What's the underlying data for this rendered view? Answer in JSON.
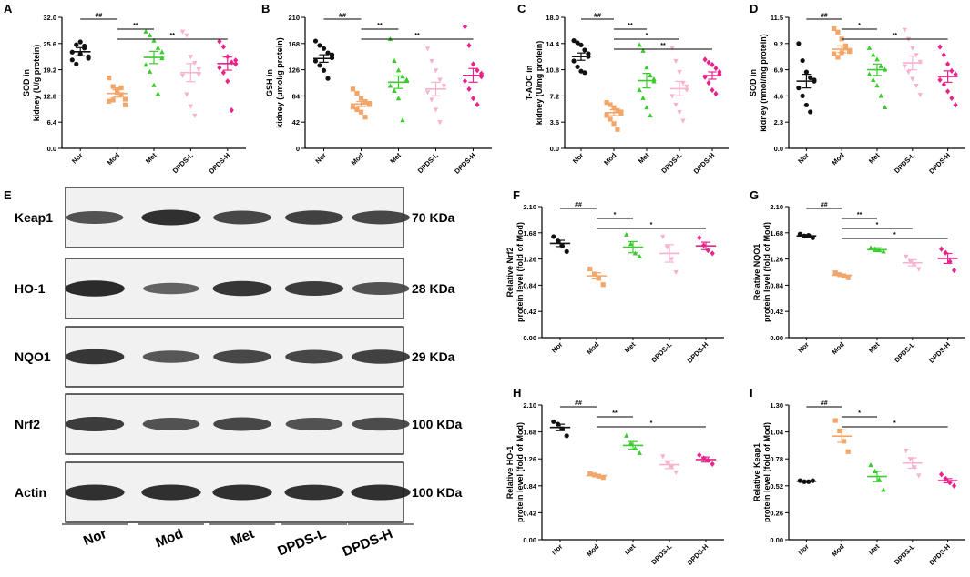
{
  "figure": {
    "groups": [
      "Nor",
      "Mod",
      "Met",
      "DPDS-L",
      "DPDS-H"
    ],
    "group_colors": [
      "#111111",
      "#F2A66A",
      "#3CCB2F",
      "#F7B2CF",
      "#E8248A"
    ],
    "marker_shapes": [
      "circle",
      "square",
      "triangle",
      "tri-down",
      "diamond"
    ]
  },
  "chart_data": [
    {
      "panel": "A",
      "type": "scatter",
      "ylabel": [
        "SOD in",
        "kidney (U/g protein)"
      ],
      "ylim": [
        0,
        32
      ],
      "yticks": [
        "0.0",
        "6.4",
        "12.8",
        "19.2",
        "25.6",
        "32.0"
      ],
      "series": [
        {
          "name": "Nor",
          "values": [
            23.5,
            25.3,
            26.0,
            24.5,
            22.4,
            21.6,
            20.6,
            23.0,
            25.0,
            22.0
          ],
          "mean": 23.6,
          "sem": 1.0
        },
        {
          "name": "Mod",
          "values": [
            17.2,
            15.1,
            14.3,
            13.1,
            12.0,
            11.5,
            11.8,
            13.6,
            14.8,
            10.6
          ],
          "mean": 13.4,
          "sem": 0.9
        },
        {
          "name": "Met",
          "values": [
            28.5,
            27.6,
            26.3,
            24.5,
            22.0,
            20.4,
            18.7,
            15.4,
            13.3,
            23.5
          ],
          "mean": 22.2,
          "sem": 1.5
        },
        {
          "name": "DPDS-L",
          "values": [
            28.5,
            27.6,
            22.4,
            20.9,
            19.3,
            17.8,
            13.2,
            10.3,
            8.0,
            18.0
          ],
          "mean": 18.5,
          "sem": 2.2
        },
        {
          "name": "DPDS-H",
          "values": [
            26.1,
            24.8,
            22.4,
            21.0,
            20.6,
            19.7,
            18.5,
            16.4,
            9.3,
            21.5
          ],
          "mean": 20.7,
          "sem": 1.6
        }
      ],
      "brackets": [
        {
          "from": "Nor",
          "to": "Mod",
          "label": "##"
        },
        {
          "from": "Mod",
          "to": "Met",
          "label": "**"
        },
        {
          "from": "Mod",
          "to": "DPDS-H",
          "label": "**"
        }
      ]
    },
    {
      "panel": "B",
      "type": "scatter",
      "ylabel": [
        "GSH in",
        "kidney (μmol/g protein)"
      ],
      "ylim": [
        0,
        210
      ],
      "yticks": [
        "0",
        "42",
        "84",
        "126",
        "168",
        "210"
      ],
      "series": [
        {
          "name": "Nor",
          "values": [
            172,
            165,
            160,
            153,
            145,
            140,
            133,
            125,
            112,
            150
          ],
          "mean": 144,
          "sem": 6
        },
        {
          "name": "Mod",
          "values": [
            95,
            88,
            80,
            75,
            70,
            66,
            62,
            58,
            50,
            72
          ],
          "mean": 71,
          "sem": 4
        },
        {
          "name": "Met",
          "values": [
            175,
            140,
            125,
            115,
            108,
            100,
            92,
            80,
            45,
            110
          ],
          "mean": 106,
          "sem": 10
        },
        {
          "name": "DPDS-L",
          "values": [
            160,
            140,
            125,
            110,
            100,
            90,
            78,
            62,
            42,
            100
          ],
          "mean": 95,
          "sem": 11
        },
        {
          "name": "DPDS-H",
          "values": [
            195,
            165,
            135,
            125,
            115,
            108,
            95,
            80,
            70,
            120
          ],
          "mean": 117,
          "sem": 11
        }
      ],
      "brackets": [
        {
          "from": "Nor",
          "to": "Mod",
          "label": "##"
        },
        {
          "from": "Mod",
          "to": "Met",
          "label": "**"
        },
        {
          "from": "Mod",
          "to": "DPDS-H",
          "label": "**"
        }
      ]
    },
    {
      "panel": "C",
      "type": "scatter",
      "ylabel": [
        "T-AOC in",
        "kidney (U/mg protein)"
      ],
      "ylim": [
        0,
        18
      ],
      "yticks": [
        "0.0",
        "3.6",
        "7.2",
        "10.8",
        "14.4",
        "18.0"
      ],
      "series": [
        {
          "name": "Nor",
          "values": [
            14.8,
            14.5,
            14.2,
            13.5,
            12.6,
            12.0,
            11.2,
            10.6,
            10.4,
            13.0
          ],
          "mean": 12.6,
          "sem": 0.5
        },
        {
          "name": "Mod",
          "values": [
            6.3,
            6.0,
            5.6,
            5.2,
            4.8,
            4.5,
            4.0,
            3.4,
            2.6,
            5.0
          ],
          "mean": 4.9,
          "sem": 0.4
        },
        {
          "name": "Met",
          "values": [
            14.2,
            13.4,
            11.1,
            10.0,
            9.2,
            8.0,
            6.9,
            5.6,
            4.5,
            9.5
          ],
          "mean": 9.3,
          "sem": 1.0
        },
        {
          "name": "DPDS-L",
          "values": [
            13.8,
            12.0,
            10.5,
            9.0,
            8.0,
            7.2,
            6.0,
            5.0,
            3.8,
            8.5
          ],
          "mean": 8.2,
          "sem": 1.0
        },
        {
          "name": "DPDS-H",
          "values": [
            12.2,
            11.8,
            11.5,
            11.0,
            10.2,
            9.8,
            9.0,
            8.0,
            7.5,
            10.5
          ],
          "mean": 10.0,
          "sem": 0.5
        }
      ],
      "brackets": [
        {
          "from": "Nor",
          "to": "Mod",
          "label": "##"
        },
        {
          "from": "Mod",
          "to": "Met",
          "label": "**"
        },
        {
          "from": "Mod",
          "to": "DPDS-L",
          "label": "*"
        },
        {
          "from": "Mod",
          "to": "DPDS-H",
          "label": "**"
        }
      ]
    },
    {
      "panel": "D",
      "type": "scatter",
      "ylabel": [
        "SOD in",
        "kidney (nmol/mg protein)"
      ],
      "ylim": [
        0,
        11.5
      ],
      "yticks": [
        "0.0",
        "2.3",
        "4.6",
        "6.9",
        "9.2",
        "11.5"
      ],
      "series": [
        {
          "name": "Nor",
          "values": [
            9.2,
            7.7,
            6.7,
            6.2,
            5.9,
            5.3,
            4.6,
            3.8,
            3.2,
            6.0
          ],
          "mean": 5.9,
          "sem": 0.6
        },
        {
          "name": "Mod",
          "values": [
            10.5,
            10.2,
            9.6,
            9.0,
            8.6,
            8.3,
            8.0,
            8.4,
            8.8,
            8.5
          ],
          "mean": 8.7,
          "sem": 0.3
        },
        {
          "name": "Met",
          "values": [
            8.8,
            8.2,
            7.8,
            7.2,
            6.9,
            6.5,
            6.0,
            5.5,
            4.6,
            3.6
          ],
          "mean": 6.9,
          "sem": 0.5
        },
        {
          "name": "DPDS-L",
          "values": [
            10.4,
            9.6,
            8.8,
            8.2,
            7.6,
            7.2,
            6.7,
            6.1,
            5.5,
            4.7
          ],
          "mean": 7.5,
          "sem": 0.6
        },
        {
          "name": "DPDS-H",
          "values": [
            8.9,
            8.2,
            7.4,
            6.8,
            6.5,
            6.0,
            5.6,
            5.0,
            4.4,
            3.8
          ],
          "mean": 6.3,
          "sem": 0.5
        }
      ],
      "brackets": [
        {
          "from": "Nor",
          "to": "Mod",
          "label": "##"
        },
        {
          "from": "Mod",
          "to": "Met",
          "label": "*"
        },
        {
          "from": "Mod",
          "to": "DPDS-H",
          "label": "**"
        }
      ]
    },
    {
      "panel": "F",
      "type": "scatter",
      "ylabel": [
        "Relative Nrf2",
        "protein level (fold of Mod)"
      ],
      "ylim": [
        0,
        2.1
      ],
      "yticks": [
        "0.00",
        "0.42",
        "0.84",
        "1.26",
        "1.68",
        "2.10"
      ],
      "series": [
        {
          "name": "Nor",
          "values": [
            1.62,
            1.55,
            1.47,
            1.38
          ],
          "mean": 1.51,
          "sem": 0.05
        },
        {
          "name": "Mod",
          "values": [
            1.1,
            1.02,
            0.95,
            0.85
          ],
          "mean": 0.99,
          "sem": 0.05
        },
        {
          "name": "Met",
          "values": [
            1.65,
            1.5,
            1.35,
            1.3
          ],
          "mean": 1.45,
          "sem": 0.09
        },
        {
          "name": "DPDS-L",
          "values": [
            1.62,
            1.45,
            1.26,
            1.05
          ],
          "mean": 1.35,
          "sem": 0.14
        },
        {
          "name": "DPDS-H",
          "values": [
            1.6,
            1.48,
            1.4,
            1.35
          ],
          "mean": 1.47,
          "sem": 0.06
        }
      ],
      "brackets": [
        {
          "from": "Nor",
          "to": "Mod",
          "label": "##"
        },
        {
          "from": "Mod",
          "to": "Met",
          "label": "*"
        },
        {
          "from": "Mod",
          "to": "DPDS-H",
          "label": "*"
        }
      ]
    },
    {
      "panel": "G",
      "type": "scatter",
      "ylabel": [
        "Relative NQO1",
        "protein level (fold of Mod)"
      ],
      "ylim": [
        0,
        2.1
      ],
      "yticks": [
        "0.00",
        "0.42",
        "0.84",
        "1.26",
        "1.68",
        "2.10"
      ],
      "series": [
        {
          "name": "Nor",
          "values": [
            1.66,
            1.63,
            1.64,
            1.6
          ],
          "mean": 1.63,
          "sem": 0.02
        },
        {
          "name": "Mod",
          "values": [
            1.04,
            1.01,
            0.99,
            0.96
          ],
          "mean": 1.0,
          "sem": 0.02
        },
        {
          "name": "Met",
          "values": [
            1.44,
            1.42,
            1.4,
            1.38
          ],
          "mean": 1.41,
          "sem": 0.03
        },
        {
          "name": "DPDS-L",
          "values": [
            1.3,
            1.22,
            1.18,
            1.1
          ],
          "mean": 1.2,
          "sem": 0.05
        },
        {
          "name": "DPDS-H",
          "values": [
            1.42,
            1.36,
            1.22,
            1.08
          ],
          "mean": 1.27,
          "sem": 0.08
        }
      ],
      "brackets": [
        {
          "from": "Nor",
          "to": "Mod",
          "label": "##"
        },
        {
          "from": "Mod",
          "to": "Met",
          "label": "**"
        },
        {
          "from": "Mod",
          "to": "DPDS-L",
          "label": "*"
        },
        {
          "from": "Mod",
          "to": "DPDS-H",
          "label": "*"
        }
      ]
    },
    {
      "panel": "H",
      "type": "scatter",
      "ylabel": [
        "Relative HO-1",
        "protein level (fold of Mod)"
      ],
      "ylim": [
        0,
        2.1
      ],
      "yticks": [
        "0.00",
        "0.42",
        "0.84",
        "1.26",
        "1.68",
        "2.10"
      ],
      "series": [
        {
          "name": "Nor",
          "values": [
            1.84,
            1.8,
            1.73,
            1.62
          ],
          "mean": 1.75,
          "sem": 0.05
        },
        {
          "name": "Mod",
          "values": [
            1.03,
            1.01,
            0.99,
            0.97
          ],
          "mean": 1.0,
          "sem": 0.02
        },
        {
          "name": "Met",
          "values": [
            1.62,
            1.5,
            1.42,
            1.35
          ],
          "mean": 1.47,
          "sem": 0.06
        },
        {
          "name": "DPDS-L",
          "values": [
            1.3,
            1.2,
            1.13,
            1.05
          ],
          "mean": 1.17,
          "sem": 0.06
        },
        {
          "name": "DPDS-H",
          "values": [
            1.32,
            1.27,
            1.24,
            1.18
          ],
          "mean": 1.25,
          "sem": 0.04
        }
      ],
      "brackets": [
        {
          "from": "Nor",
          "to": "Mod",
          "label": "##"
        },
        {
          "from": "Mod",
          "to": "Met",
          "label": "**"
        },
        {
          "from": "Mod",
          "to": "DPDS-H",
          "label": "*"
        }
      ]
    },
    {
      "panel": "I",
      "type": "scatter",
      "ylabel": [
        "Relative Keap1",
        "protein level (fold of Mod)"
      ],
      "ylim": [
        0,
        1.3
      ],
      "yticks": [
        "0.00",
        "0.26",
        "0.52",
        "0.78",
        "1.04",
        "1.30"
      ],
      "series": [
        {
          "name": "Nor",
          "values": [
            0.57,
            0.56,
            0.56,
            0.57
          ],
          "mean": 0.565,
          "sem": 0.005
        },
        {
          "name": "Mod",
          "values": [
            1.15,
            1.05,
            0.95,
            0.85
          ],
          "mean": 1.0,
          "sem": 0.06
        },
        {
          "name": "Met",
          "values": [
            0.72,
            0.66,
            0.58,
            0.48
          ],
          "mean": 0.61,
          "sem": 0.05
        },
        {
          "name": "DPDS-L",
          "values": [
            0.86,
            0.78,
            0.7,
            0.62
          ],
          "mean": 0.74,
          "sem": 0.05
        },
        {
          "name": "DPDS-H",
          "values": [
            0.63,
            0.59,
            0.55,
            0.52
          ],
          "mean": 0.57,
          "sem": 0.02
        }
      ],
      "brackets": [
        {
          "from": "Nor",
          "to": "Mod",
          "label": "##"
        },
        {
          "from": "Mod",
          "to": "Met",
          "label": "*"
        },
        {
          "from": "Mod",
          "to": "DPDS-H",
          "label": "*"
        }
      ]
    }
  ],
  "blot": {
    "panel_label": "E",
    "rows": [
      {
        "protein": "Keap1",
        "size": "70 KDa",
        "intensity": [
          0.6,
          0.9,
          0.7,
          0.75,
          0.7
        ]
      },
      {
        "protein": "HO-1",
        "size": "28 KDa",
        "intensity": [
          0.95,
          0.45,
          0.85,
          0.8,
          0.6
        ]
      },
      {
        "protein": "NQO1",
        "size": "29 KDa",
        "intensity": [
          0.85,
          0.55,
          0.7,
          0.7,
          0.75
        ]
      },
      {
        "protein": "Nrf2",
        "size": "100 KDa",
        "intensity": [
          0.8,
          0.6,
          0.7,
          0.6,
          0.65
        ]
      },
      {
        "protein": "Actin",
        "size": "100 KDa",
        "intensity": [
          0.9,
          0.9,
          0.9,
          0.88,
          0.9
        ]
      }
    ],
    "lanes": [
      "Nor",
      "Mod",
      "Met",
      "DPDS-L",
      "DPDS-H"
    ]
  }
}
